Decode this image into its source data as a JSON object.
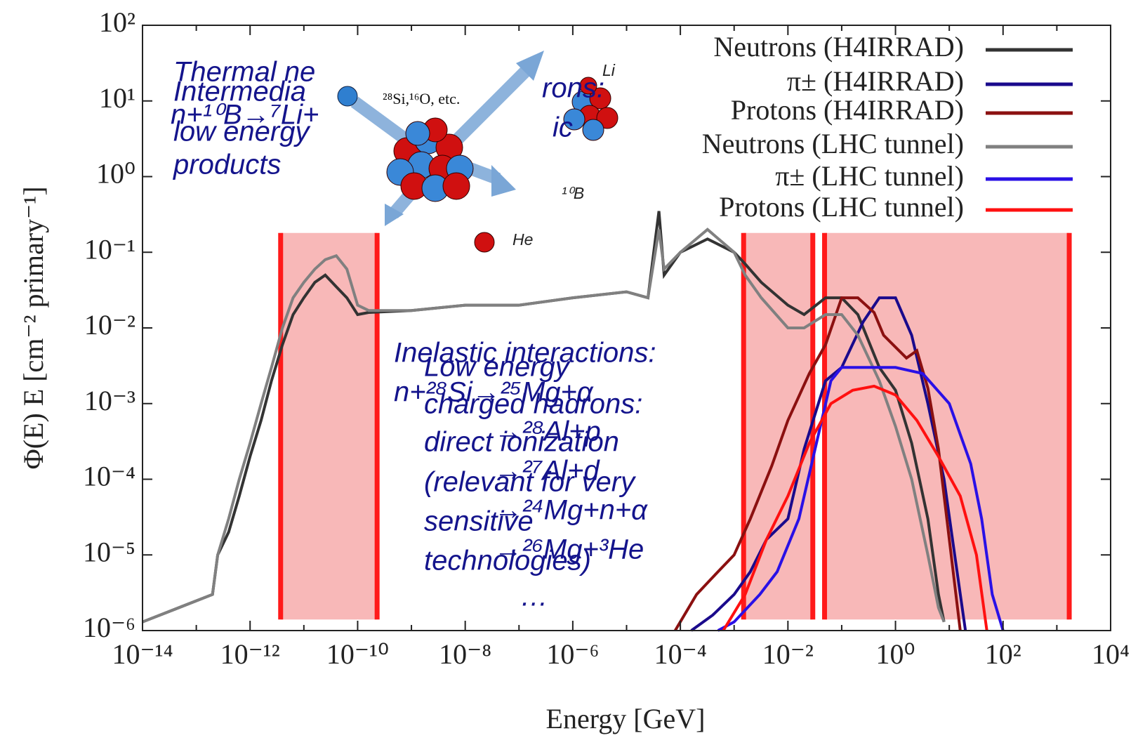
{
  "chart_data": {
    "type": "line",
    "xscale": "log",
    "yscale": "log",
    "xlabel": "Energy [GeV]",
    "ylabel": "Φ(E) E  [cm⁻² primary⁻¹]",
    "xlim": [
      1e-14,
      10000.0
    ],
    "ylim": [
      1e-06,
      100
    ],
    "xticks": [
      {
        "value": 1e-14,
        "label": "10⁻¹⁴"
      },
      {
        "value": 1e-12,
        "label": "10⁻¹²"
      },
      {
        "value": 1e-10,
        "label": "10⁻¹⁰"
      },
      {
        "value": 1e-08,
        "label": "10⁻⁸"
      },
      {
        "value": 1e-06,
        "label": "10⁻⁶"
      },
      {
        "value": 0.0001,
        "label": "10⁻⁴"
      },
      {
        "value": 0.01,
        "label": "10⁻²"
      },
      {
        "value": 1,
        "label": "10⁰"
      },
      {
        "value": 100,
        "label": "10²"
      },
      {
        "value": 10000.0,
        "label": "10⁴"
      }
    ],
    "xminorticks": [
      1e-13,
      1e-11,
      1e-09,
      1e-07,
      1e-05,
      0.001,
      0.1,
      10,
      1000
    ],
    "yticks": [
      {
        "value": 1e-06,
        "label": "10⁻⁶"
      },
      {
        "value": 1e-05,
        "label": "10⁻⁵"
      },
      {
        "value": 0.0001,
        "label": "10⁻⁴"
      },
      {
        "value": 0.001,
        "label": "10⁻³"
      },
      {
        "value": 0.01,
        "label": "10⁻²"
      },
      {
        "value": 0.1,
        "label": "10⁻¹"
      },
      {
        "value": 1,
        "label": "10⁰"
      },
      {
        "value": 10,
        "label": "10¹"
      },
      {
        "value": 100,
        "label": "10²"
      }
    ],
    "legend": "upper right",
    "region_color": "#f8b8b8",
    "region_edge_color": "#ff1a1a",
    "regions": [
      {
        "x": [
          3.7e-12,
          2.3e-10
        ],
        "y": [
          1.4e-06,
          0.18
        ]
      },
      {
        "x": [
          0.0015,
          0.029
        ],
        "y": [
          1.4e-06,
          0.18
        ]
      },
      {
        "x": [
          0.048,
          1700
        ],
        "y": [
          1.4e-06,
          0.18
        ]
      }
    ],
    "series": [
      {
        "name": "Neutrons (H4IRRAD)",
        "color": "#333333",
        "x": [
          1e-14,
          2e-13,
          2.5e-13,
          4e-13,
          6.3e-13,
          1e-12,
          1.6e-12,
          2.5e-12,
          4e-12,
          6.3e-12,
          1e-11,
          1.6e-11,
          2.5e-11,
          4e-11,
          6.3e-11,
          1e-10,
          1.6e-10,
          1e-09,
          1e-08,
          1e-07,
          1e-06,
          1e-05,
          2.5e-05,
          4e-05,
          5e-05,
          0.0001,
          0.00032,
          0.001,
          0.0016,
          0.0032,
          0.01,
          0.02,
          0.05,
          0.1,
          0.2,
          0.5,
          1,
          2,
          4,
          6.3,
          8
        ],
        "values": [
          1.3e-06,
          3e-06,
          1e-05,
          2e-05,
          6e-05,
          0.0002,
          0.0006,
          0.002,
          0.006,
          0.015,
          0.025,
          0.04,
          0.05,
          0.035,
          0.025,
          0.015,
          0.016,
          0.017,
          0.02,
          0.02,
          0.025,
          0.03,
          0.025,
          0.35,
          0.05,
          0.1,
          0.15,
          0.1,
          0.07,
          0.04,
          0.02,
          0.015,
          0.025,
          0.025,
          0.015,
          0.003,
          0.0015,
          0.0003,
          3e-05,
          3e-06,
          1.3e-06
        ]
      },
      {
        "name": "π± (H4IRRAD)",
        "color": "#1a0a8c",
        "x": [
          0.00016,
          0.0004,
          0.001,
          0.002,
          0.004,
          0.01,
          0.02,
          0.05,
          0.1,
          0.25,
          0.5,
          1,
          2,
          4,
          8,
          12.6,
          20
        ],
        "values": [
          1e-06,
          1.6e-06,
          3e-06,
          6e-06,
          1.6e-05,
          3e-05,
          0.00025,
          0.002,
          0.003,
          0.012,
          0.025,
          0.025,
          0.008,
          0.001,
          0.0001,
          1e-05,
          1e-06
        ]
      },
      {
        "name": "Protons (H4IRRAD)",
        "color": "#8b1010",
        "x": [
          8e-05,
          0.0002,
          0.0005,
          0.001,
          0.002,
          0.005,
          0.01,
          0.025,
          0.05,
          0.1,
          0.2,
          0.4,
          0.6,
          1.6,
          2.5,
          4,
          6.3,
          10,
          16
        ],
        "values": [
          1e-06,
          3e-06,
          6e-06,
          1e-05,
          3e-05,
          0.00015,
          0.0006,
          0.0025,
          0.006,
          0.025,
          0.025,
          0.016,
          0.008,
          0.004,
          0.005,
          0.0016,
          0.00025,
          1.6e-05,
          1e-06
        ]
      },
      {
        "name": "Neutrons (LHC tunnel)",
        "color": "#808080",
        "x": [
          1e-14,
          2e-13,
          2.5e-13,
          4e-13,
          6.3e-13,
          1e-12,
          1.6e-12,
          2.5e-12,
          4e-12,
          6.3e-12,
          1e-11,
          1.6e-11,
          2.5e-11,
          4e-11,
          6.3e-11,
          1e-10,
          1.6e-10,
          1e-09,
          1e-08,
          1e-07,
          1e-06,
          1e-05,
          2.5e-05,
          4e-05,
          5e-05,
          0.0001,
          0.00032,
          0.001,
          0.0016,
          0.0032,
          0.01,
          0.02,
          0.05,
          0.1,
          0.2,
          0.5,
          1,
          2,
          4,
          6.3,
          8
        ],
        "values": [
          1.3e-06,
          3e-06,
          1e-05,
          3e-05,
          0.0001,
          0.0003,
          0.001,
          0.003,
          0.01,
          0.025,
          0.04,
          0.06,
          0.08,
          0.09,
          0.06,
          0.02,
          0.017,
          0.017,
          0.02,
          0.02,
          0.025,
          0.03,
          0.025,
          0.2,
          0.06,
          0.1,
          0.2,
          0.1,
          0.05,
          0.025,
          0.01,
          0.01,
          0.015,
          0.015,
          0.008,
          0.002,
          0.0005,
          0.0001,
          1e-05,
          2e-06,
          1.3e-06
        ]
      },
      {
        "name": "π± (LHC tunnel)",
        "color": "#2a10e6",
        "x": [
          0.0005,
          0.001,
          0.003,
          0.0063,
          0.016,
          0.032,
          0.063,
          0.1,
          0.3,
          1,
          3.2,
          10,
          25,
          40,
          63,
          100
        ],
        "values": [
          1e-06,
          1.3e-06,
          3e-06,
          6e-06,
          3e-05,
          0.00025,
          0.002,
          0.003,
          0.003,
          0.003,
          0.0025,
          0.001,
          0.00016,
          3e-05,
          3e-06,
          1e-06
        ]
      },
      {
        "name": "Protons (LHC tunnel)",
        "color": "#ff1010",
        "x": [
          0.00063,
          0.0016,
          0.004,
          0.01,
          0.025,
          0.063,
          0.16,
          0.4,
          1,
          2.5,
          6.3,
          16,
          32,
          50
        ],
        "values": [
          1e-06,
          3e-06,
          1.6e-05,
          6e-05,
          0.0003,
          0.001,
          0.0015,
          0.0017,
          0.0013,
          0.0006,
          0.0002,
          6e-05,
          1e-05,
          1e-06
        ]
      }
    ],
    "annotations": [
      "Thermal ne",
      "Intermedia",
      "n+¹⁰B→⁷Li+",
      "low energy",
      "products",
      "rons:",
      "ic",
      "Li",
      "¹⁰B",
      "He",
      "²⁸Si,¹⁶O, etc.",
      "Inelastic interactions:",
      "n+²⁸Si→²⁵Mg+α",
      "→²⁸Al+p",
      "→²⁷Al+d",
      "→²⁴Mg+n+α",
      "→²⁶Mg+³He",
      "…",
      "Low energy",
      "charged hadrons:",
      "direct ionization",
      "(relevant for very",
      "sensitive",
      "technologies)"
    ]
  }
}
